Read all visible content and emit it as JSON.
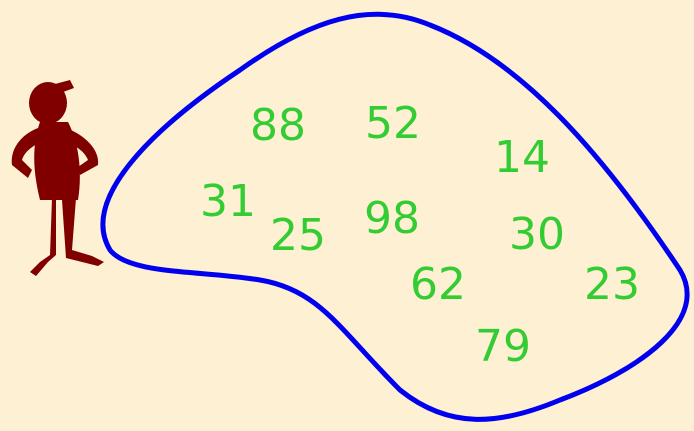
{
  "numbers": [
    88,
    52,
    14,
    31,
    25,
    98,
    30,
    62,
    23,
    79
  ]
}
